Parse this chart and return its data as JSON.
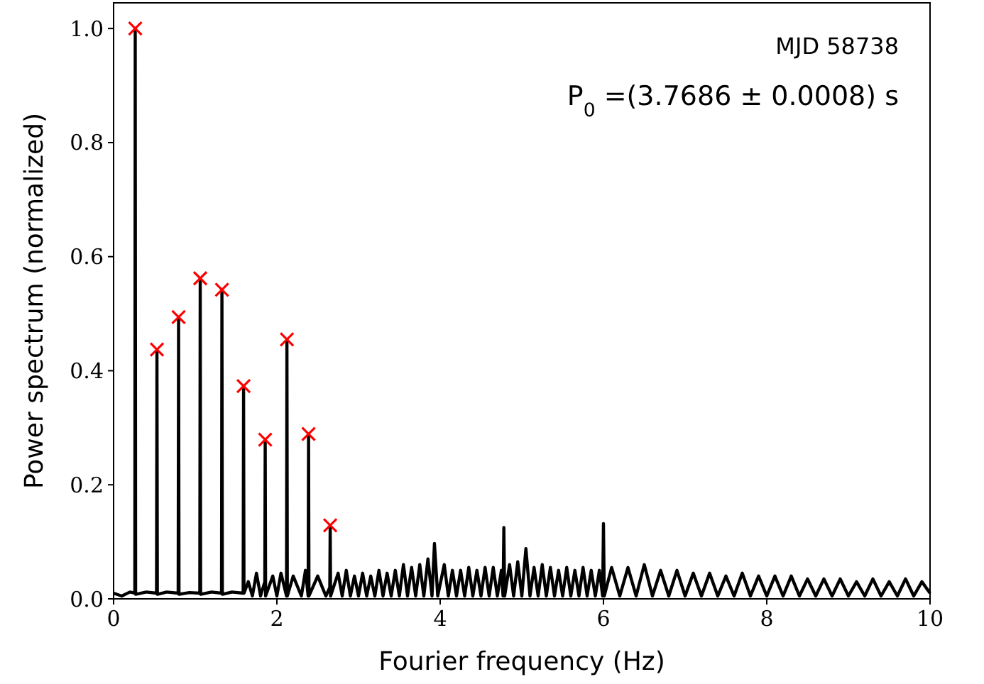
{
  "chart_data": {
    "type": "line",
    "xlabel": "Fourier frequency (Hz)",
    "ylabel": "Power spectrum (normalized)",
    "xlim": [
      0,
      10
    ],
    "xticks": [
      0,
      2,
      4,
      6,
      8,
      10
    ],
    "ylim": [
      0,
      1.045
    ],
    "yticks": [
      {
        "value": 0,
        "label": "0.0"
      },
      {
        "value": 0.2,
        "label": "0.2"
      },
      {
        "value": 0.4,
        "label": "0.4"
      },
      {
        "value": 0.6,
        "label": "0.6"
      },
      {
        "value": 0.8,
        "label": "0.8"
      },
      {
        "value": 1,
        "label": "1.0"
      }
    ],
    "grid": false,
    "annotations": [
      "MJD 58738",
      "P$_{0}$ =(3.7686 ± 0.0008) s"
    ],
    "series": [
      {
        "color": "#000000",
        "line_style": "solid",
        "x": [
          0,
          0.1,
          0.2,
          0.26,
          0.265,
          0.27,
          0.4,
          0.526,
          0.531,
          0.536,
          0.65,
          0.791,
          0.796,
          0.801,
          0.93,
          1.056,
          1.061,
          1.066,
          1.2,
          1.322,
          1.327,
          1.332,
          1.45,
          1.587,
          1.592,
          1.597,
          1.65,
          1.7,
          1.75,
          1.8,
          1.852,
          1.857,
          1.862,
          1.95,
          2.0,
          2.05,
          2.118,
          2.123,
          2.128,
          2.2,
          2.3,
          2.35,
          2.383,
          2.388,
          2.393,
          2.5,
          2.6,
          2.648,
          2.653,
          2.658,
          2.75,
          2.8,
          2.85,
          2.9,
          2.95,
          3.0,
          3.05,
          3.1,
          3.15,
          3.2,
          3.25,
          3.3,
          3.35,
          3.4,
          3.45,
          3.5,
          3.55,
          3.6,
          3.65,
          3.7,
          3.75,
          3.8,
          3.85,
          3.9,
          3.93,
          3.97,
          4.05,
          4.1,
          4.15,
          4.2,
          4.25,
          4.3,
          4.35,
          4.4,
          4.45,
          4.5,
          4.55,
          4.6,
          4.65,
          4.7,
          4.75,
          4.77,
          4.78,
          4.79,
          4.85,
          4.9,
          4.95,
          5.0,
          5.05,
          5.1,
          5.15,
          5.2,
          5.25,
          5.3,
          5.35,
          5.4,
          5.45,
          5.5,
          5.55,
          5.6,
          5.65,
          5.7,
          5.75,
          5.8,
          5.85,
          5.9,
          5.95,
          5.99,
          6.0,
          6.01,
          6.1,
          6.2,
          6.3,
          6.4,
          6.5,
          6.6,
          6.7,
          6.8,
          6.9,
          7.0,
          7.1,
          7.2,
          7.3,
          7.4,
          7.5,
          7.6,
          7.7,
          7.8,
          7.9,
          8.0,
          8.1,
          8.2,
          8.3,
          8.4,
          8.5,
          8.6,
          8.7,
          8.8,
          8.9,
          9.0,
          9.1,
          9.2,
          9.3,
          9.4,
          9.5,
          9.6,
          9.7,
          9.8,
          9.9,
          10.0
        ],
        "values": [
          0.01,
          0.005,
          0.012,
          0.01,
          1.0,
          0.008,
          0.012,
          0.01,
          0.437,
          0.008,
          0.012,
          0.01,
          0.494,
          0.008,
          0.011,
          0.01,
          0.562,
          0.008,
          0.012,
          0.01,
          0.542,
          0.008,
          0.012,
          0.01,
          0.373,
          0.01,
          0.03,
          0.005,
          0.045,
          0.005,
          0.03,
          0.279,
          0.005,
          0.04,
          0.005,
          0.045,
          0.005,
          0.455,
          0.005,
          0.04,
          0.005,
          0.05,
          0.005,
          0.289,
          0.005,
          0.04,
          0.005,
          0.02,
          0.129,
          0.005,
          0.045,
          0.005,
          0.05,
          0.005,
          0.04,
          0.005,
          0.045,
          0.005,
          0.04,
          0.005,
          0.05,
          0.005,
          0.045,
          0.005,
          0.05,
          0.005,
          0.06,
          0.005,
          0.055,
          0.005,
          0.06,
          0.005,
          0.07,
          0.005,
          0.097,
          0.005,
          0.06,
          0.005,
          0.05,
          0.005,
          0.05,
          0.005,
          0.055,
          0.005,
          0.05,
          0.005,
          0.055,
          0.005,
          0.055,
          0.005,
          0.05,
          0.005,
          0.125,
          0.005,
          0.06,
          0.005,
          0.065,
          0.005,
          0.088,
          0.005,
          0.055,
          0.005,
          0.06,
          0.005,
          0.055,
          0.005,
          0.05,
          0.005,
          0.055,
          0.005,
          0.05,
          0.005,
          0.055,
          0.005,
          0.05,
          0.005,
          0.05,
          0.005,
          0.132,
          0.005,
          0.055,
          0.005,
          0.055,
          0.005,
          0.06,
          0.005,
          0.05,
          0.005,
          0.05,
          0.005,
          0.045,
          0.005,
          0.045,
          0.005,
          0.04,
          0.005,
          0.045,
          0.005,
          0.04,
          0.005,
          0.04,
          0.005,
          0.04,
          0.005,
          0.035,
          0.005,
          0.035,
          0.005,
          0.035,
          0.005,
          0.03,
          0.005,
          0.035,
          0.005,
          0.03,
          0.005,
          0.035,
          0.005,
          0.03,
          0.01
        ]
      },
      {
        "type": "scatter",
        "color": "#ff0000",
        "marker": "cross",
        "x": [
          0.265,
          0.531,
          0.796,
          1.061,
          1.327,
          1.592,
          1.857,
          2.123,
          2.388,
          2.653
        ],
        "values": [
          1.0,
          0.437,
          0.494,
          0.562,
          0.542,
          0.373,
          0.279,
          0.455,
          0.289,
          0.129
        ]
      }
    ]
  }
}
